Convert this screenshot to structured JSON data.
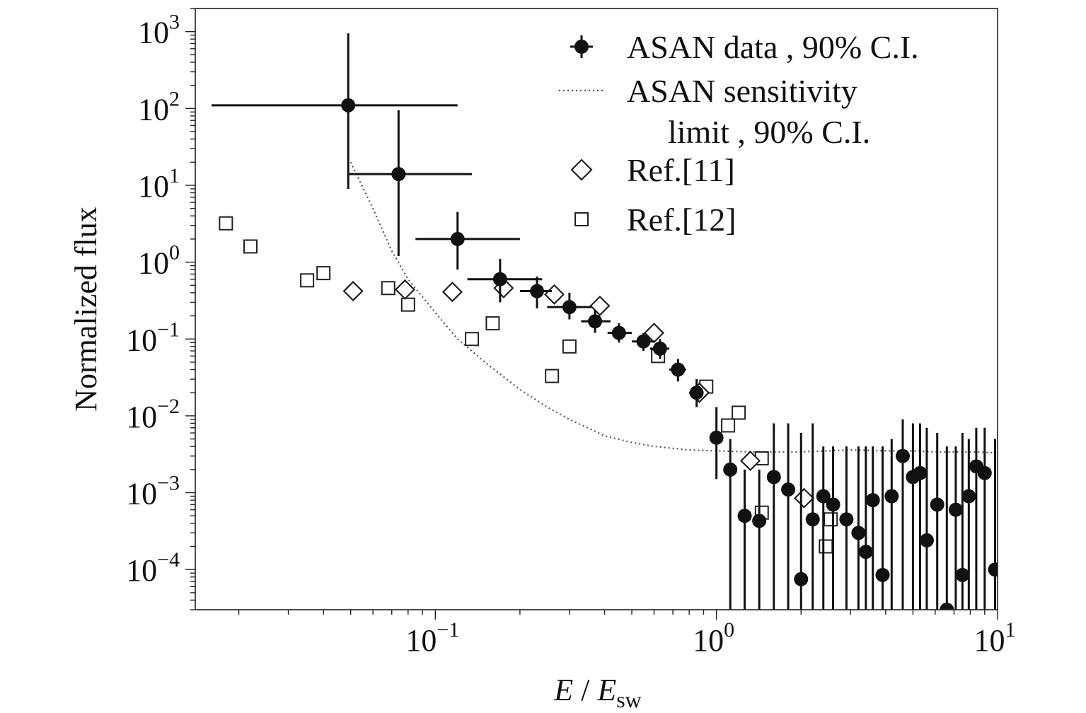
{
  "chart_data": {
    "type": "scatter",
    "xscale": "log",
    "yscale": "log",
    "xlim": [
      0.014,
      10
    ],
    "ylim": [
      3e-05,
      2000
    ],
    "xlabel_main": "E",
    "xlabel_sep": " / ",
    "xlabel_var": "E",
    "xlabel_sub": "sw",
    "ylabel": "Normalized flux",
    "x_ticks": [
      {
        "value": 0.1,
        "base": "10",
        "exp": "−1"
      },
      {
        "value": 1,
        "base": "10",
        "exp": "0"
      },
      {
        "value": 10,
        "base": "10",
        "exp": "1"
      }
    ],
    "y_ticks": [
      {
        "value": 1000,
        "base": "10",
        "exp": "3"
      },
      {
        "value": 100,
        "base": "10",
        "exp": "2"
      },
      {
        "value": 10,
        "base": "10",
        "exp": "1"
      },
      {
        "value": 1,
        "base": "10",
        "exp": "0"
      },
      {
        "value": 0.1,
        "base": "10",
        "exp": "−1"
      },
      {
        "value": 0.01,
        "base": "10",
        "exp": "−2"
      },
      {
        "value": 0.001,
        "base": "10",
        "exp": "−3"
      },
      {
        "value": 0.0001,
        "base": "10",
        "exp": "−4"
      }
    ],
    "legend_position": "top-right",
    "legend": [
      {
        "label": "ASAN data , 90% C.I.",
        "marker": "filled-circle-errorbar"
      },
      {
        "label": "ASAN sensitivity",
        "label2": "limit , 90% C.I.",
        "marker": "dotted-line"
      },
      {
        "label": "Ref.[11]",
        "marker": "open-diamond"
      },
      {
        "label": "Ref.[12]",
        "marker": "open-square"
      }
    ],
    "series": [
      {
        "name": "ASAN data , 90% C.I.",
        "marker": "filled-circle",
        "color": "#111111",
        "points": [
          {
            "x": 0.049,
            "y": 110,
            "xlo": 0.016,
            "xhi": 0.12,
            "ylo": 9,
            "yhi": 950
          },
          {
            "x": 0.074,
            "y": 14,
            "xlo": 0.049,
            "xhi": 0.135,
            "ylo": 1.2,
            "yhi": 95
          },
          {
            "x": 0.12,
            "y": 2.0,
            "xlo": 0.085,
            "xhi": 0.2,
            "ylo": 0.8,
            "yhi": 4.5
          },
          {
            "x": 0.17,
            "y": 0.6,
            "xlo": 0.13,
            "xhi": 0.24,
            "ylo": 0.3,
            "yhi": 1.1
          },
          {
            "x": 0.23,
            "y": 0.42,
            "xlo": 0.2,
            "xhi": 0.26,
            "ylo": 0.25,
            "yhi": 0.65
          },
          {
            "x": 0.3,
            "y": 0.26,
            "xlo": 0.25,
            "xhi": 0.36,
            "ylo": 0.18,
            "yhi": 0.4
          },
          {
            "x": 0.37,
            "y": 0.17,
            "xlo": 0.33,
            "xhi": 0.42,
            "ylo": 0.12,
            "yhi": 0.24
          },
          {
            "x": 0.45,
            "y": 0.12,
            "xlo": 0.41,
            "xhi": 0.5,
            "ylo": 0.09,
            "yhi": 0.16
          },
          {
            "x": 0.55,
            "y": 0.093,
            "xlo": 0.5,
            "xhi": 0.6,
            "ylo": 0.07,
            "yhi": 0.12
          },
          {
            "x": 0.63,
            "y": 0.075,
            "xlo": 0.58,
            "xhi": 0.68,
            "ylo": 0.055,
            "yhi": 0.1
          },
          {
            "x": 0.73,
            "y": 0.04,
            "xlo": 0.68,
            "xhi": 0.78,
            "ylo": 0.028,
            "yhi": 0.055
          },
          {
            "x": 0.85,
            "y": 0.02,
            "xlo": 0.8,
            "xhi": 0.9,
            "ylo": 0.013,
            "yhi": 0.03
          },
          {
            "x": 1.0,
            "y": 0.0052,
            "xlo": 0.95,
            "xhi": 1.05,
            "ylo": 0.0015,
            "yhi": 0.013
          },
          {
            "x": 1.12,
            "y": 0.002,
            "xlo": 1.08,
            "xhi": 1.18,
            "ylo": 3e-05,
            "yhi": 0.005
          },
          {
            "x": 1.26,
            "y": 0.0005,
            "ylo": 3e-05,
            "yhi": 0.002
          },
          {
            "x": 1.42,
            "y": 0.00043,
            "ylo": 3e-05,
            "yhi": 0.002
          },
          {
            "x": 1.6,
            "y": 0.0016,
            "ylo": 3e-05,
            "yhi": 0.008
          },
          {
            "x": 1.8,
            "y": 0.0011,
            "ylo": 3e-05,
            "yhi": 0.008
          },
          {
            "x": 2.0,
            "y": 7.5e-05,
            "ylo": 3e-05,
            "yhi": 0.006
          },
          {
            "x": 2.2,
            "y": 0.00045,
            "ylo": 3e-05,
            "yhi": 0.008
          },
          {
            "x": 2.4,
            "y": 0.0009,
            "ylo": 3e-05,
            "yhi": 0.004
          },
          {
            "x": 2.6,
            "y": 0.0007,
            "ylo": 3e-05,
            "yhi": 0.004
          },
          {
            "x": 2.9,
            "y": 0.00045,
            "ylo": 3e-05,
            "yhi": 0.004
          },
          {
            "x": 3.2,
            "y": 0.0003,
            "ylo": 3e-05,
            "yhi": 0.004
          },
          {
            "x": 3.4,
            "y": 0.00017,
            "ylo": 3e-05,
            "yhi": 0.004
          },
          {
            "x": 3.6,
            "y": 0.0008,
            "ylo": 3e-05,
            "yhi": 0.004
          },
          {
            "x": 3.9,
            "y": 8.5e-05,
            "ylo": 3e-05,
            "yhi": 0.004
          },
          {
            "x": 4.2,
            "y": 0.0009,
            "ylo": 3e-05,
            "yhi": 0.005
          },
          {
            "x": 4.6,
            "y": 0.003,
            "ylo": 3e-05,
            "yhi": 0.009
          },
          {
            "x": 5.0,
            "y": 0.0016,
            "ylo": 3e-05,
            "yhi": 0.008
          },
          {
            "x": 5.3,
            "y": 0.0018,
            "ylo": 3e-05,
            "yhi": 0.008
          },
          {
            "x": 5.6,
            "y": 0.00024,
            "ylo": 3e-05,
            "yhi": 0.007
          },
          {
            "x": 6.1,
            "y": 0.0007,
            "ylo": 3e-05,
            "yhi": 0.006
          },
          {
            "x": 6.6,
            "y": 3e-05,
            "ylo": 3e-05,
            "yhi": 0.004
          },
          {
            "x": 7.1,
            "y": 0.0006,
            "ylo": 3e-05,
            "yhi": 0.004
          },
          {
            "x": 7.5,
            "y": 8.5e-05,
            "ylo": 3e-05,
            "yhi": 0.006
          },
          {
            "x": 7.9,
            "y": 0.0009,
            "ylo": 3e-05,
            "yhi": 0.005
          },
          {
            "x": 8.4,
            "y": 0.0022,
            "ylo": 3e-05,
            "yhi": 0.007
          },
          {
            "x": 9.0,
            "y": 0.0018,
            "ylo": 3e-05,
            "yhi": 0.007
          },
          {
            "x": 9.8,
            "y": 0.0001,
            "ylo": 3e-05,
            "yhi": 0.005
          }
        ]
      },
      {
        "name": "ASAN sensitivity limit , 90% C.I.",
        "line": "dotted",
        "color": "#555555",
        "x": [
          0.05,
          0.06,
          0.07,
          0.08,
          0.1,
          0.12,
          0.15,
          0.2,
          0.25,
          0.3,
          0.4,
          0.5,
          0.6,
          0.8,
          1.0,
          1.3,
          1.6,
          2.0,
          2.5,
          3.0,
          4.0,
          5.0,
          6.0,
          8.0,
          10.0
        ],
        "y": [
          20,
          5,
          1.4,
          0.6,
          0.22,
          0.1,
          0.05,
          0.022,
          0.013,
          0.009,
          0.0055,
          0.0045,
          0.004,
          0.0036,
          0.0035,
          0.0034,
          0.0034,
          0.0034,
          0.0035,
          0.0036,
          0.0035,
          0.0035,
          0.0034,
          0.0034,
          0.0033
        ]
      },
      {
        "name": "Ref.[11]",
        "marker": "open-diamond",
        "x": [
          0.051,
          0.078,
          0.115,
          0.175,
          0.265,
          0.385,
          0.6,
          0.87,
          1.32,
          2.05
        ],
        "y": [
          0.42,
          0.44,
          0.41,
          0.46,
          0.38,
          0.27,
          0.12,
          0.02,
          0.0026,
          0.00085
        ]
      },
      {
        "name": "Ref.[12]",
        "marker": "open-square",
        "x": [
          0.018,
          0.022,
          0.035,
          0.04,
          0.068,
          0.08,
          0.135,
          0.16,
          0.26,
          0.3,
          0.62,
          0.92,
          1.1,
          1.2,
          1.45,
          1.45,
          2.45,
          2.55
        ],
        "y": [
          3.2,
          1.6,
          0.58,
          0.72,
          0.46,
          0.28,
          0.1,
          0.16,
          0.033,
          0.08,
          0.06,
          0.024,
          0.0075,
          0.011,
          0.0028,
          0.00055,
          0.0002,
          0.00045
        ]
      }
    ]
  }
}
